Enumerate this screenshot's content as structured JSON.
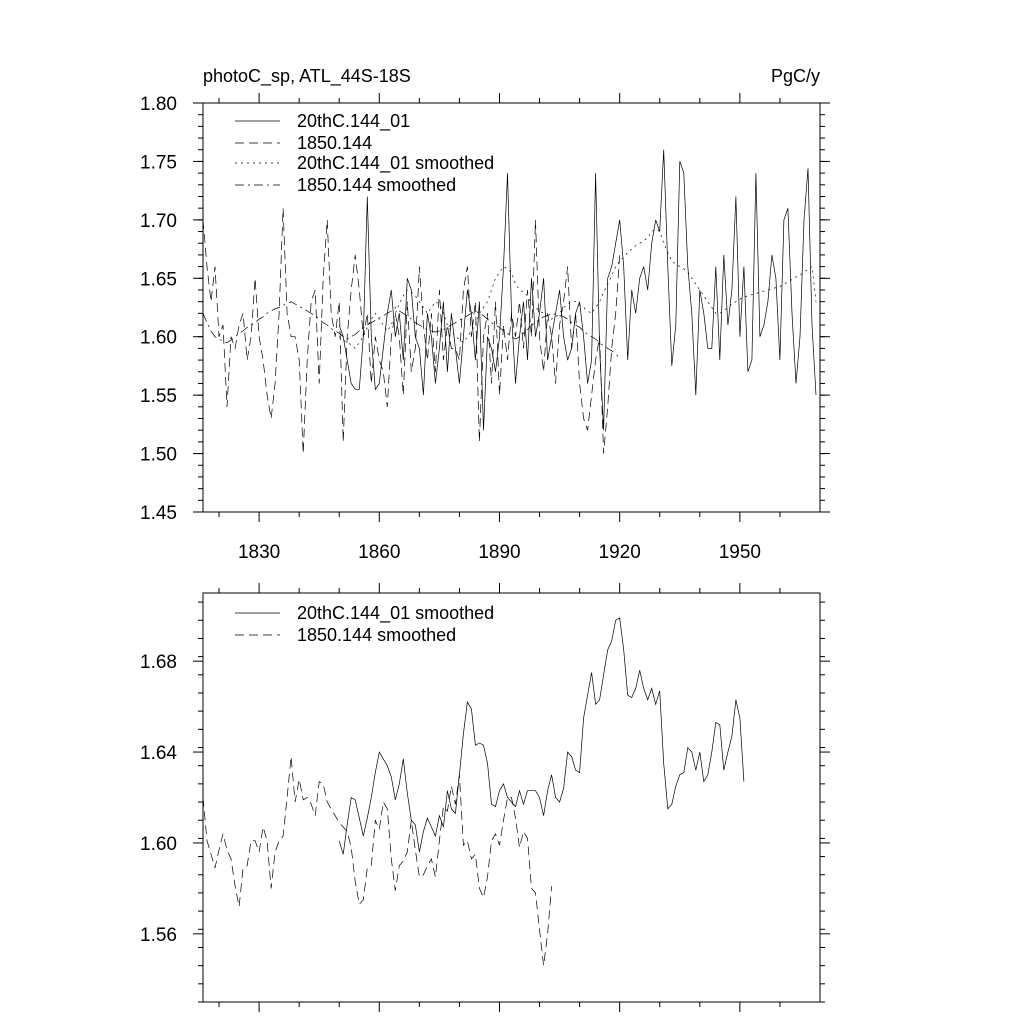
{
  "chart_data": [
    {
      "type": "line",
      "title_left": "photoC_sp, ATL_44S-18S",
      "title_right": "PgC/y",
      "xlim": [
        1816,
        1970
      ],
      "ylim": [
        1.45,
        1.8
      ],
      "x_ticks": [
        1830,
        1860,
        1890,
        1920,
        1950
      ],
      "x_tick_labels": [
        "1830",
        "1860",
        "1890",
        "1920",
        "1950"
      ],
      "y_ticks": [
        1.45,
        1.5,
        1.55,
        1.6,
        1.65,
        1.7,
        1.75,
        1.8
      ],
      "y_tick_labels": [
        "1.45",
        "1.50",
        "1.55",
        "1.60",
        "1.65",
        "1.70",
        "1.75",
        "1.80"
      ],
      "legend_position": "top-left",
      "series": [
        {
          "name": "20thC.144_01",
          "dash": "solid",
          "x_start": 1850,
          "values": [
            1.61,
            1.6,
            1.58,
            1.56,
            1.555,
            1.555,
            1.6,
            1.72,
            1.6,
            1.555,
            1.56,
            1.59,
            1.62,
            1.64,
            1.6,
            1.62,
            1.58,
            1.65,
            1.64,
            1.6,
            1.59,
            1.55,
            1.62,
            1.6,
            1.56,
            1.59,
            1.63,
            1.57,
            1.62,
            1.59,
            1.56,
            1.6,
            1.64,
            1.62,
            1.58,
            1.63,
            1.52,
            1.6,
            1.59,
            1.57,
            1.6,
            1.66,
            1.74,
            1.62,
            1.56,
            1.6,
            1.63,
            1.58,
            1.65,
            1.6,
            1.62,
            1.65,
            1.58,
            1.6,
            1.62,
            1.64,
            1.6,
            1.58,
            1.59,
            1.62,
            1.63,
            1.6,
            1.56,
            1.58,
            1.74,
            1.59,
            1.52,
            1.65,
            1.66,
            1.68,
            1.7,
            1.66,
            1.58,
            1.64,
            1.62,
            1.65,
            1.66,
            1.64,
            1.68,
            1.7,
            1.69,
            1.76,
            1.66,
            1.575,
            1.61,
            1.75,
            1.74,
            1.66,
            1.62,
            1.55,
            1.64,
            1.62,
            1.59,
            1.59,
            1.66,
            1.58,
            1.67,
            1.61,
            1.64,
            1.72,
            1.6,
            1.66,
            1.57,
            1.58,
            1.74,
            1.6,
            1.61,
            1.63,
            1.67,
            1.65,
            1.58,
            1.7,
            1.71,
            1.62,
            1.56,
            1.6,
            1.7,
            1.744,
            1.61,
            1.55
          ]
        },
        {
          "name": "1850.144",
          "dash": "long",
          "x_start": 1816,
          "values": [
            1.7,
            1.66,
            1.63,
            1.66,
            1.6,
            1.61,
            1.54,
            1.6,
            1.59,
            1.61,
            1.62,
            1.58,
            1.6,
            1.65,
            1.6,
            1.58,
            1.55,
            1.53,
            1.56,
            1.62,
            1.71,
            1.62,
            1.6,
            1.6,
            1.58,
            1.5,
            1.58,
            1.63,
            1.64,
            1.56,
            1.65,
            1.7,
            1.62,
            1.6,
            1.63,
            1.51,
            1.6,
            1.64,
            1.67,
            1.64,
            1.6,
            1.62,
            1.56,
            1.6,
            1.58,
            1.57,
            1.54,
            1.6,
            1.62,
            1.6,
            1.55,
            1.63,
            1.57,
            1.59,
            1.66,
            1.61,
            1.58,
            1.62,
            1.57,
            1.64,
            1.58,
            1.61,
            1.59,
            1.59,
            1.58,
            1.64,
            1.66,
            1.6,
            1.63,
            1.51,
            1.6,
            1.62,
            1.56,
            1.63,
            1.55,
            1.61,
            1.58,
            1.62,
            1.6,
            1.63,
            1.59,
            1.64,
            1.6,
            1.7,
            1.6,
            1.57,
            1.62,
            1.6,
            1.56,
            1.61,
            1.63,
            1.66,
            1.59,
            1.62,
            1.56,
            1.53,
            1.52,
            1.55,
            1.58,
            1.6,
            1.5,
            1.54,
            1.59,
            1.62,
            1.67
          ]
        },
        {
          "name": "20thC.144_01 smoothed",
          "dash": "dotted",
          "x_start": 1850,
          "values": [
            1.6,
            1.597,
            1.595,
            1.593,
            1.59,
            1.595,
            1.6,
            1.608,
            1.615,
            1.62,
            1.615,
            1.61,
            1.605,
            1.61,
            1.62,
            1.628,
            1.635,
            1.64,
            1.638,
            1.635,
            1.63,
            1.625,
            1.62,
            1.625,
            1.63,
            1.628,
            1.62,
            1.61,
            1.605,
            1.6,
            1.598,
            1.595,
            1.6,
            1.605,
            1.61,
            1.62,
            1.625,
            1.63,
            1.64,
            1.65,
            1.655,
            1.66,
            1.658,
            1.655,
            1.645,
            1.64,
            1.638,
            1.635,
            1.628,
            1.625,
            1.622,
            1.62,
            1.618,
            1.615,
            1.617,
            1.62,
            1.625,
            1.628,
            1.63,
            1.63,
            1.627,
            1.625,
            1.622,
            1.62,
            1.625,
            1.63,
            1.638,
            1.645,
            1.652,
            1.66,
            1.665,
            1.668,
            1.672,
            1.675,
            1.678,
            1.68,
            1.682,
            1.685,
            1.69,
            1.692,
            1.69,
            1.68,
            1.672,
            1.665,
            1.662,
            1.66,
            1.658,
            1.655,
            1.65,
            1.645,
            1.64,
            1.635,
            1.63,
            1.625,
            1.62,
            1.62,
            1.622,
            1.625,
            1.628,
            1.63,
            1.632,
            1.634,
            1.635,
            1.636,
            1.637,
            1.638,
            1.639,
            1.64,
            1.641,
            1.642,
            1.643,
            1.645,
            1.647,
            1.649,
            1.651,
            1.653,
            1.655,
            1.658,
            1.66,
            1.63
          ]
        },
        {
          "name": "1850.144 smoothed",
          "dash": "dashdot",
          "x_start": 1816,
          "values": [
            1.62,
            1.612,
            1.605,
            1.6,
            1.598,
            1.596,
            1.595,
            1.597,
            1.6,
            1.603,
            1.605,
            1.608,
            1.61,
            1.612,
            1.615,
            1.617,
            1.62,
            1.622,
            1.624,
            1.625,
            1.627,
            1.628,
            1.63,
            1.628,
            1.626,
            1.624,
            1.622,
            1.62,
            1.618,
            1.615,
            1.612,
            1.61,
            1.607,
            1.605,
            1.603,
            1.6,
            1.598,
            1.6,
            1.602,
            1.605,
            1.607,
            1.61,
            1.612,
            1.614,
            1.616,
            1.618,
            1.62,
            1.622,
            1.625,
            1.622,
            1.62,
            1.618,
            1.615,
            1.612,
            1.61,
            1.608,
            1.606,
            1.605,
            1.604,
            1.605,
            1.606,
            1.608,
            1.61,
            1.612,
            1.614,
            1.616,
            1.618,
            1.62,
            1.622,
            1.62,
            1.618,
            1.615,
            1.612,
            1.61,
            1.608,
            1.605,
            1.603,
            1.6,
            1.598,
            1.6,
            1.603,
            1.606,
            1.61,
            1.612,
            1.615,
            1.617,
            1.618,
            1.62,
            1.619,
            1.618,
            1.617,
            1.615,
            1.612,
            1.61,
            1.608,
            1.605,
            1.602,
            1.6,
            1.598,
            1.595,
            1.592,
            1.59,
            1.588,
            1.585,
            1.582
          ]
        }
      ],
      "legend": [
        "20thC.144_01",
        "1850.144",
        "20thC.144_01 smoothed",
        "1850.144 smoothed"
      ]
    },
    {
      "type": "line",
      "xlim": [
        1816,
        1970
      ],
      "ylim": [
        1.53,
        1.71
      ],
      "x_ticks": [
        1830,
        1860,
        1890,
        1920,
        1950
      ],
      "y_ticks": [
        1.56,
        1.6,
        1.64,
        1.68
      ],
      "y_tick_labels": [
        "1.56",
        "1.60",
        "1.64",
        "1.68"
      ],
      "legend_position": "top-left",
      "series": [
        {
          "name": "20thC.144_01 smoothed",
          "dash": "solid",
          "x_start": 1850,
          "values": [
            1.601,
            1.595,
            1.608,
            1.62,
            1.619,
            1.611,
            1.603,
            1.611,
            1.62,
            1.631,
            1.64,
            1.637,
            1.634,
            1.629,
            1.619,
            1.626,
            1.637,
            1.622,
            1.61,
            1.608,
            1.596,
            1.605,
            1.611,
            1.607,
            1.603,
            1.612,
            1.607,
            1.623,
            1.615,
            1.613,
            1.63,
            1.648,
            1.662,
            1.659,
            1.643,
            1.644,
            1.643,
            1.635,
            1.617,
            1.616,
            1.623,
            1.626,
            1.62,
            1.618,
            1.616,
            1.623,
            1.617,
            1.623,
            1.623,
            1.623,
            1.62,
            1.612,
            1.623,
            1.63,
            1.62,
            1.618,
            1.624,
            1.64,
            1.638,
            1.632,
            1.631,
            1.655,
            1.665,
            1.675,
            1.661,
            1.663,
            1.674,
            1.685,
            1.689,
            1.698,
            1.699,
            1.685,
            1.665,
            1.664,
            1.668,
            1.676,
            1.668,
            1.663,
            1.668,
            1.661,
            1.667,
            1.635,
            1.615,
            1.617,
            1.625,
            1.63,
            1.631,
            1.642,
            1.64,
            1.632,
            1.64,
            1.627,
            1.63,
            1.64,
            1.653,
            1.652,
            1.632,
            1.64,
            1.647,
            1.663,
            1.655,
            1.627
          ]
        },
        {
          "name": "1850.144 smoothed",
          "dash": "long",
          "x_start": 1816,
          "values": [
            1.62,
            1.601,
            1.595,
            1.589,
            1.597,
            1.604,
            1.597,
            1.593,
            1.581,
            1.572,
            1.589,
            1.59,
            1.601,
            1.601,
            1.596,
            1.607,
            1.601,
            1.58,
            1.596,
            1.601,
            1.603,
            1.62,
            1.638,
            1.618,
            1.628,
            1.619,
            1.62,
            1.617,
            1.612,
            1.627,
            1.626,
            1.618,
            1.615,
            1.612,
            1.609,
            1.607,
            1.605,
            1.598,
            1.583,
            1.573,
            1.575,
            1.589,
            1.59,
            1.61,
            1.606,
            1.618,
            1.615,
            1.593,
            1.579,
            1.59,
            1.592,
            1.596,
            1.61,
            1.597,
            1.585,
            1.586,
            1.59,
            1.593,
            1.585,
            1.601,
            1.616,
            1.614,
            1.625,
            1.617,
            1.63,
            1.599,
            1.601,
            1.593,
            1.595,
            1.58,
            1.576,
            1.585,
            1.601,
            1.604,
            1.599,
            1.61,
            1.62,
            1.62,
            1.611,
            1.598,
            1.605,
            1.602,
            1.58,
            1.578,
            1.562,
            1.546,
            1.56,
            1.581
          ]
        }
      ],
      "legend": [
        "20thC.144_01 smoothed",
        "1850.144 smoothed"
      ]
    }
  ]
}
